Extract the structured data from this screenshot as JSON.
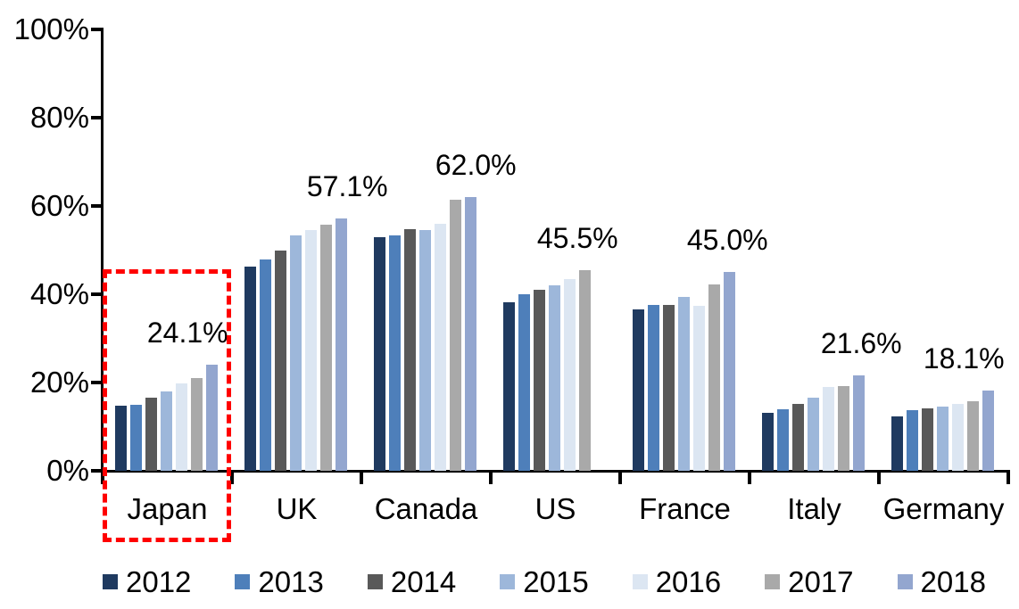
{
  "chart_data": {
    "type": "bar",
    "title": "",
    "xlabel": "",
    "ylabel": "",
    "categories": [
      "Japan",
      "UK",
      "Canada",
      "US",
      "France",
      "Italy",
      "Germany"
    ],
    "series": [
      {
        "name": "2012",
        "color": "#1F3A60",
        "values": [
          14.7,
          46.3,
          53.0,
          38.1,
          36.5,
          13.2,
          12.3
        ]
      },
      {
        "name": "2013",
        "color": "#4E7FBA",
        "values": [
          14.9,
          47.8,
          53.4,
          39.9,
          37.6,
          13.9,
          13.8
        ]
      },
      {
        "name": "2014",
        "color": "#595959",
        "values": [
          16.5,
          50.0,
          54.8,
          41.0,
          37.6,
          15.1,
          14.2
        ]
      },
      {
        "name": "2015",
        "color": "#9DB7DA",
        "values": [
          17.9,
          53.3,
          54.5,
          42.1,
          39.3,
          16.6,
          14.6
        ]
      },
      {
        "name": "2016",
        "color": "#DCE6F2",
        "values": [
          19.8,
          54.6,
          56.0,
          43.5,
          37.3,
          18.9,
          15.1
        ]
      },
      {
        "name": "2017",
        "color": "#A9A9A9",
        "values": [
          21.0,
          55.7,
          61.5,
          45.5,
          42.3,
          19.1,
          15.7
        ]
      },
      {
        "name": "2018",
        "color": "#93A6CF",
        "values": [
          24.1,
          57.1,
          62.0,
          null,
          45.0,
          21.6,
          18.1
        ]
      }
    ],
    "data_labels": [
      "24.1%",
      "57.1%",
      "62.0%",
      "45.5%",
      "45.0%",
      "21.6%",
      "18.1%"
    ],
    "y_ticks": [
      "0%",
      "20%",
      "40%",
      "60%",
      "80%",
      "100%"
    ],
    "ylim": [
      0,
      100
    ],
    "grid": false,
    "legend_position": "bottom",
    "legend_labels": [
      "2012",
      "2013",
      "2014",
      "2015",
      "2016",
      "2017",
      "2018"
    ],
    "highlight": {
      "category": "Japan",
      "style": "red-dashed-box",
      "color": "#FF0000"
    }
  }
}
